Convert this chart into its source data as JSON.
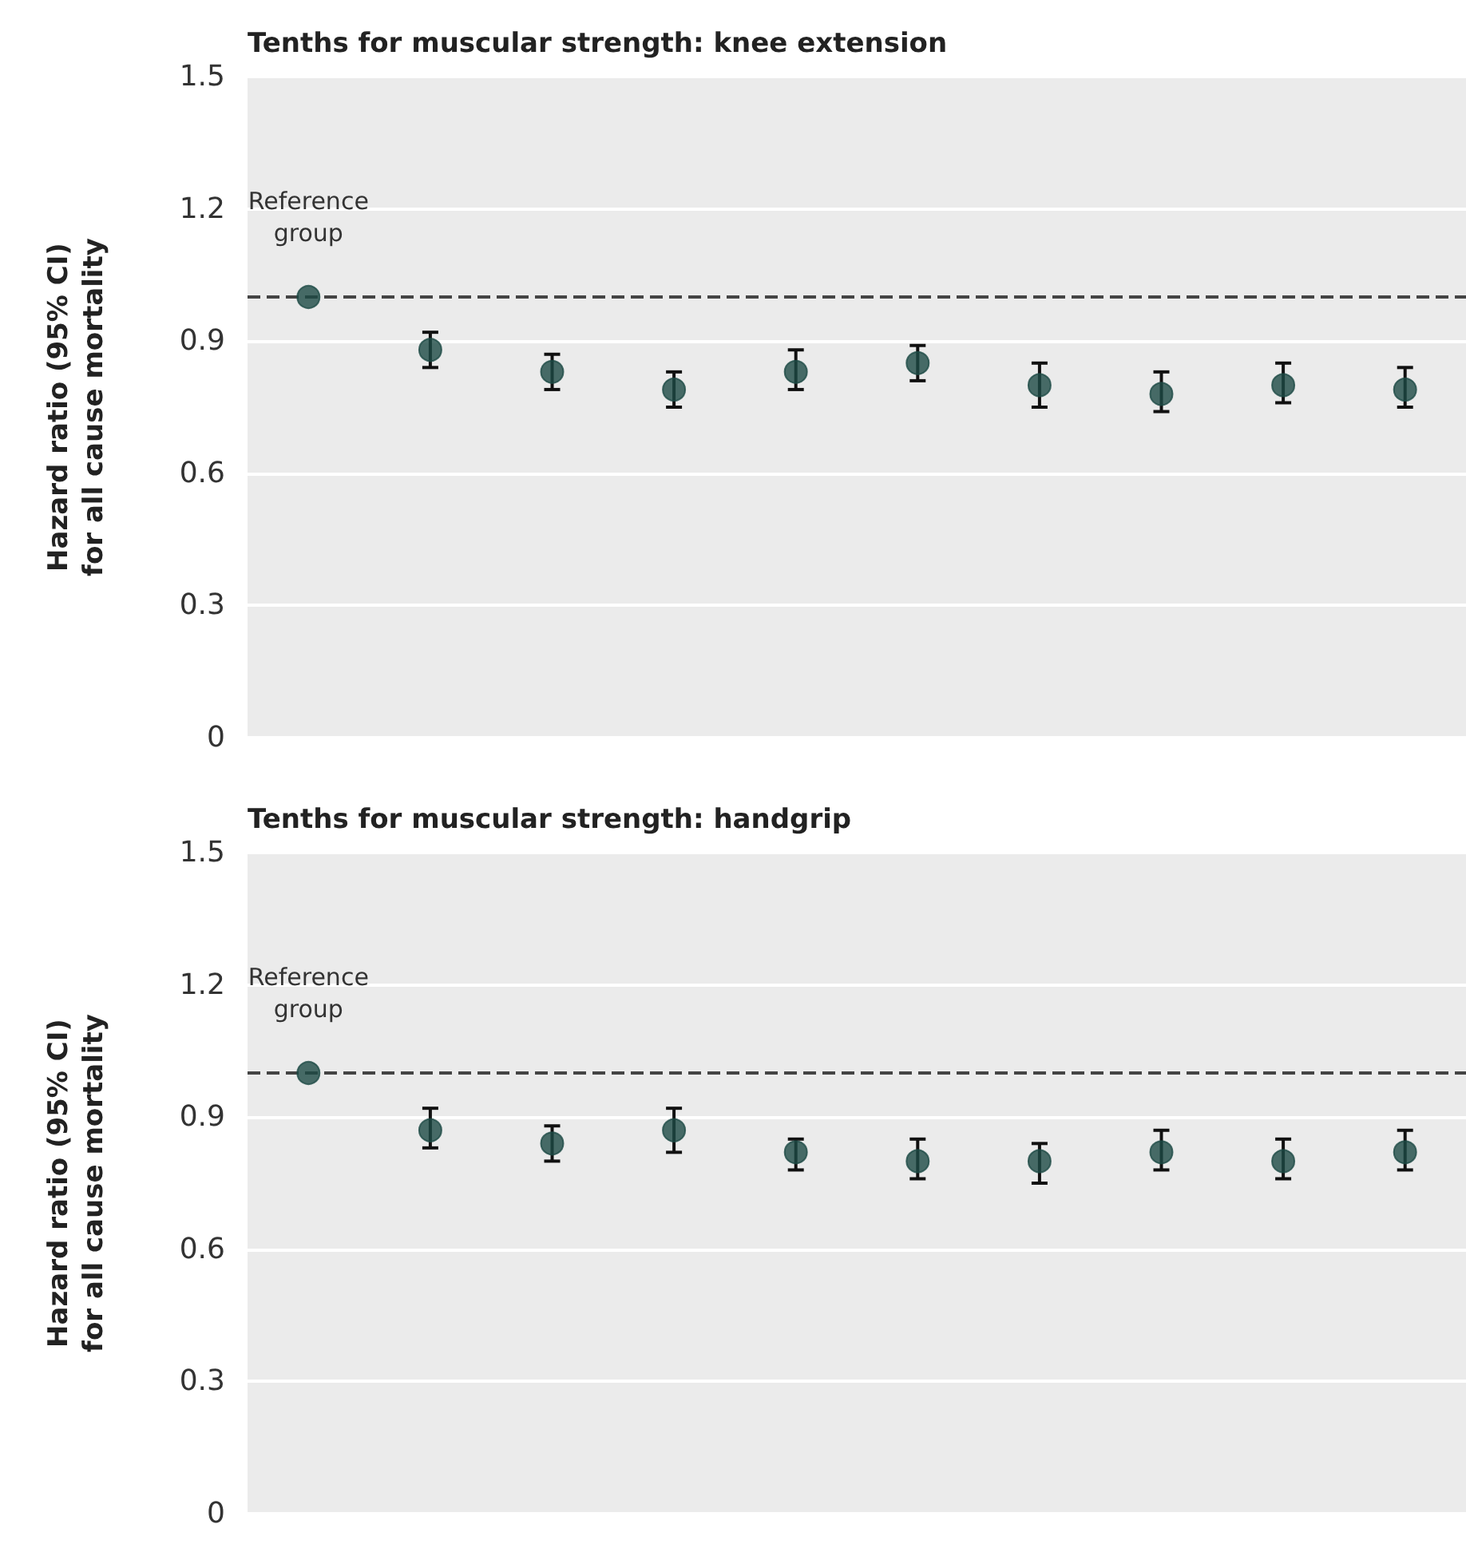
{
  "chart_data": [
    {
      "type": "scatter",
      "title": "Tenths for muscular strength: knee extension",
      "ylabel": "Hazard ratio (95% CI)\nfor all cause mortality",
      "categories": [
        null,
        null,
        null,
        null,
        null,
        null,
        null,
        null,
        null,
        null
      ],
      "series": [
        {
          "color": "#1d4a45",
          "values": [
            1.0,
            0.88,
            0.83,
            0.79,
            0.83,
            0.85,
            0.8,
            0.78,
            0.8,
            0.79
          ],
          "errors": [
            null,
            [
              0.84,
              0.92
            ],
            [
              0.79,
              0.87
            ],
            [
              0.75,
              0.83
            ],
            [
              0.79,
              0.88
            ],
            [
              0.81,
              0.89
            ],
            [
              0.75,
              0.85
            ],
            [
              0.74,
              0.83
            ],
            [
              0.76,
              0.85
            ],
            [
              0.75,
              0.84
            ]
          ]
        }
      ],
      "ylim": [
        0,
        1.5
      ],
      "yticks": [
        0,
        0.3,
        0.6,
        0.9,
        1.2,
        1.5
      ],
      "grid": "y",
      "marker": "circle",
      "tick_labels": "y",
      "ref_lines": [
        {
          "axis": "y",
          "value": 1.0,
          "line_style": "dashed",
          "color": "#444444"
        }
      ],
      "annotations": [
        "Reference group"
      ]
    },
    {
      "type": "scatter",
      "title": "Tenths for muscular strength: handgrip",
      "ylabel": "Hazard ratio (95% CI)\nfor all cause mortality",
      "categories": [
        null,
        null,
        null,
        null,
        null,
        null,
        null,
        null,
        null,
        null
      ],
      "series": [
        {
          "color": "#1d4a45",
          "values": [
            1.0,
            0.87,
            0.84,
            0.87,
            0.82,
            0.8,
            0.8,
            0.82,
            0.8,
            0.82
          ],
          "errors": [
            null,
            [
              0.83,
              0.92
            ],
            [
              0.8,
              0.88
            ],
            [
              0.82,
              0.92
            ],
            [
              0.78,
              0.85
            ],
            [
              0.76,
              0.85
            ],
            [
              0.75,
              0.84
            ],
            [
              0.78,
              0.87
            ],
            [
              0.76,
              0.85
            ],
            [
              0.78,
              0.87
            ]
          ]
        }
      ],
      "ylim": [
        0,
        1.5
      ],
      "yticks": [
        0,
        0.3,
        0.6,
        0.9,
        1.2,
        1.5
      ],
      "grid": "y",
      "marker": "circle",
      "tick_labels": "y",
      "ref_lines": [
        {
          "axis": "y",
          "value": 1.0,
          "line_style": "dashed",
          "color": "#444444"
        }
      ],
      "annotations": [
        "Reference group"
      ]
    }
  ]
}
